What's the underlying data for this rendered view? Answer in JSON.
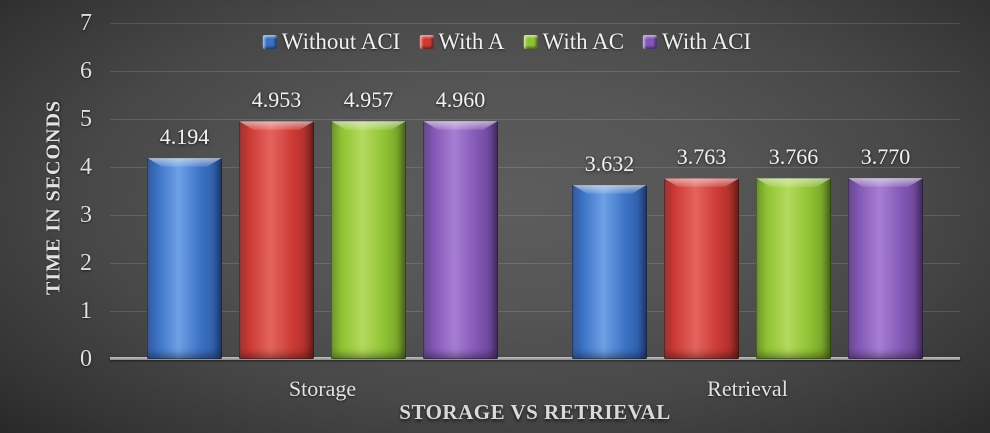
{
  "chart_data": {
    "type": "bar",
    "title": "",
    "xlabel": "STORAGE VS RETRIEVAL",
    "ylabel": "TIME IN SECONDS",
    "categories": [
      "Storage",
      "Retrieval"
    ],
    "yticks": [
      "0",
      "1",
      "2",
      "3",
      "4",
      "5",
      "6",
      "7"
    ],
    "ylim": [
      0,
      7
    ],
    "grid": true,
    "legend_position": "top-center",
    "colors": {
      "background_center": "#5d5d5d",
      "background_edge": "#1c1c1c",
      "axis_line": "#9a9a9a",
      "gridline": "rgba(255,255,255,0.13)",
      "text": "#e8e8e8"
    },
    "series": [
      {
        "name": "Without ACI",
        "color": "#3b72c4",
        "color_light": "#6ea0e6",
        "color_dark": "#2b559e",
        "values": [
          4.194,
          3.632
        ],
        "value_labels": [
          "4.194",
          "3.632"
        ]
      },
      {
        "name": "With A",
        "color": "#cd3a35",
        "color_light": "#e4645e",
        "color_dark": "#9c2b27",
        "values": [
          4.953,
          3.763
        ],
        "value_labels": [
          "4.953",
          "3.763"
        ]
      },
      {
        "name": "With AC",
        "color": "#8fc232",
        "color_light": "#b4da5e",
        "color_dark": "#6d9627",
        "values": [
          4.957,
          3.766
        ],
        "value_labels": [
          "4.957",
          "3.766"
        ]
      },
      {
        "name": "With ACI",
        "color": "#8357b5",
        "color_light": "#a77ed4",
        "color_dark": "#63418c",
        "values": [
          4.96,
          3.77
        ],
        "value_labels": [
          "4.960",
          "3.770"
        ]
      }
    ]
  }
}
